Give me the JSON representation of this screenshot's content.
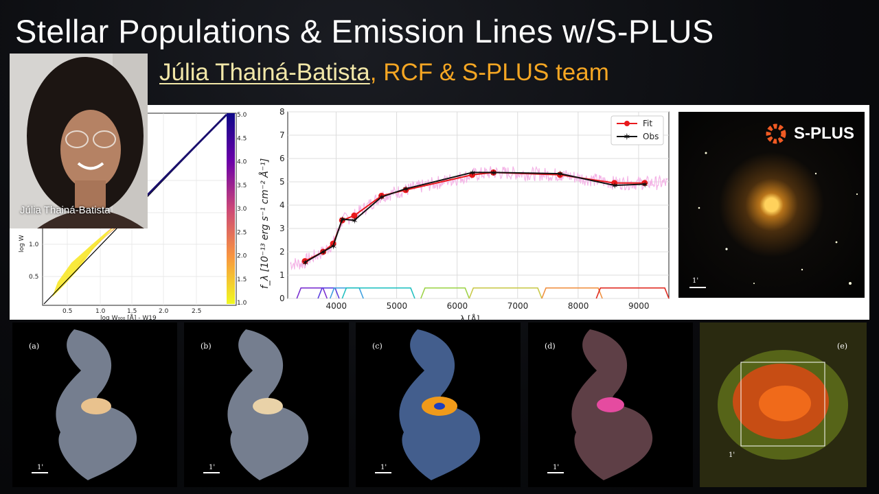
{
  "slide": {
    "title": "Stellar Populations & Emission Lines  w/S-PLUS",
    "presenter": "Júlia Thainá-Batista",
    "team": ", RCF & S-PLUS team",
    "webcam_name": "Júlia Thainá-Batista"
  },
  "left_plot": {
    "xlabel": "log W",
    "xlabel_full": "log W₀₀₀ [Å] - W19",
    "ylabel": "log W",
    "x_ticks": [
      "0.5",
      "1.0",
      "1.5",
      "2.0",
      "2.5"
    ],
    "y_ticks": [
      "0.5",
      "1.0"
    ],
    "colorbar_ticks": [
      "5.0",
      "4.5",
      "4.0",
      "3.5",
      "3.0",
      "2.5",
      "2.0",
      "1.5",
      "1.0"
    ]
  },
  "chart_data": {
    "type": "line",
    "xlabel": "λ [Å]",
    "ylabel": "f_λ [10⁻¹³ erg s⁻¹ cm⁻² Å⁻¹]",
    "xlim": [
      3200,
      9500
    ],
    "ylim": [
      0,
      8
    ],
    "x_ticks": [
      4000,
      5000,
      6000,
      7000,
      8000,
      9000
    ],
    "y_ticks": [
      0,
      1,
      2,
      3,
      4,
      5,
      6,
      7,
      8
    ],
    "grid": true,
    "legend_position": "top-right",
    "legend": [
      "Fit",
      "Obs"
    ],
    "series": [
      {
        "name": "Fit",
        "color": "#e8191c",
        "x": [
          3485,
          3785,
          3950,
          4100,
          4300,
          4750,
          5150,
          6250,
          6600,
          7700,
          8600,
          9100
        ],
        "y": [
          1.6,
          2.0,
          2.35,
          3.35,
          3.55,
          4.4,
          4.65,
          5.3,
          5.4,
          5.3,
          4.95,
          4.95
        ]
      },
      {
        "name": "Obs",
        "color": "#111111",
        "x": [
          3485,
          3785,
          3950,
          4100,
          4300,
          4750,
          5150,
          6250,
          6600,
          7700,
          8600,
          9100
        ],
        "y": [
          1.55,
          2.0,
          2.25,
          3.4,
          3.35,
          4.35,
          4.7,
          5.4,
          5.4,
          5.35,
          4.85,
          4.9
        ]
      }
    ]
  },
  "splus": {
    "logo_text": "S-PLUS",
    "scale_label": "1'"
  },
  "photos": [
    {
      "label": "(a)",
      "scale": "1'"
    },
    {
      "label": "(b)",
      "scale": "1'"
    },
    {
      "label": "(c)",
      "scale": "1'"
    },
    {
      "label": "(d)",
      "scale": "1'"
    },
    {
      "label": "(e)",
      "scale": "1'"
    }
  ],
  "colors": {
    "title": "#ffffff",
    "presenter": "#f2e7a8",
    "team": "#f5a623",
    "fit": "#e8191c",
    "spectrum": "#f4b3e6"
  }
}
